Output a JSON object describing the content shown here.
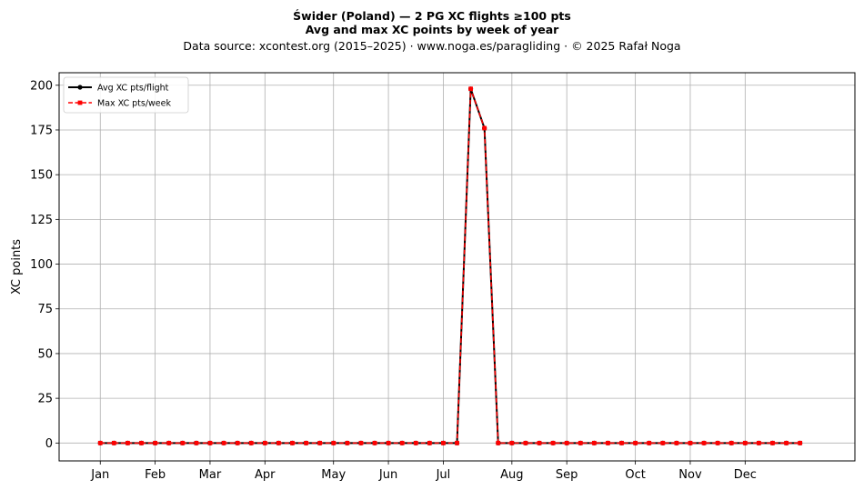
{
  "titles": {
    "line1": "Świder (Poland)  —  2 PG XC flights ≥100 pts",
    "line2": "Avg and max XC points by week of year",
    "line3": "Data source: xcontest.org (2015–2025)  ·  www.noga.es/paragliding  ·  © 2025 Rafał Noga"
  },
  "chart_data": {
    "type": "line",
    "ylabel": "XC points",
    "xlabel": "",
    "ylim": [
      -10,
      207
    ],
    "xlim": [
      -3,
      55
    ],
    "grid": true,
    "legend_position": "top-left",
    "x_ticks": [
      {
        "label": "Jan",
        "week": 0
      },
      {
        "label": "Feb",
        "week": 4
      },
      {
        "label": "Mar",
        "week": 8
      },
      {
        "label": "Apr",
        "week": 12
      },
      {
        "label": "May",
        "week": 17
      },
      {
        "label": "Jun",
        "week": 21
      },
      {
        "label": "Jul",
        "week": 25
      },
      {
        "label": "Aug",
        "week": 30
      },
      {
        "label": "Sep",
        "week": 34
      },
      {
        "label": "Oct",
        "week": 39
      },
      {
        "label": "Nov",
        "week": 43
      },
      {
        "label": "Dec",
        "week": 47
      }
    ],
    "y_ticks": [
      0,
      25,
      50,
      75,
      100,
      125,
      150,
      175,
      200
    ],
    "x": [
      0,
      1,
      2,
      3,
      4,
      5,
      6,
      7,
      8,
      9,
      10,
      11,
      12,
      13,
      14,
      15,
      16,
      17,
      18,
      19,
      20,
      21,
      22,
      23,
      24,
      25,
      26,
      27,
      28,
      29,
      30,
      31,
      32,
      33,
      34,
      35,
      36,
      37,
      38,
      39,
      40,
      41,
      42,
      43,
      44,
      45,
      46,
      47,
      48,
      49,
      50,
      51
    ],
    "series": [
      {
        "name": "Avg XC pts/flight",
        "color": "#000000",
        "marker": "circle",
        "linestyle": "solid",
        "values": [
          0,
          0,
          0,
          0,
          0,
          0,
          0,
          0,
          0,
          0,
          0,
          0,
          0,
          0,
          0,
          0,
          0,
          0,
          0,
          0,
          0,
          0,
          0,
          0,
          0,
          0,
          0,
          198,
          176,
          0,
          0,
          0,
          0,
          0,
          0,
          0,
          0,
          0,
          0,
          0,
          0,
          0,
          0,
          0,
          0,
          0,
          0,
          0,
          0,
          0,
          0,
          0
        ]
      },
      {
        "name": "Max XC pts/week",
        "color": "#ff0000",
        "marker": "square",
        "linestyle": "dashed",
        "values": [
          0,
          0,
          0,
          0,
          0,
          0,
          0,
          0,
          0,
          0,
          0,
          0,
          0,
          0,
          0,
          0,
          0,
          0,
          0,
          0,
          0,
          0,
          0,
          0,
          0,
          0,
          0,
          198,
          176,
          0,
          0,
          0,
          0,
          0,
          0,
          0,
          0,
          0,
          0,
          0,
          0,
          0,
          0,
          0,
          0,
          0,
          0,
          0,
          0,
          0,
          0,
          0
        ]
      }
    ]
  }
}
